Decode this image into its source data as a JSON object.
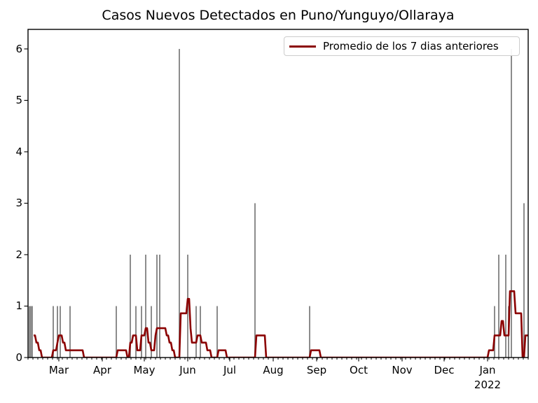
{
  "figure": {
    "background": "#ffffff"
  },
  "chart_data": {
    "type": "bar",
    "title": "Casos Nuevos Detectados en Puno/Yunguyo/Ollaraya",
    "legend": {
      "label": "Promedio de los 7 dias anteriores",
      "position": "upper right"
    },
    "bar_color": "#7f7f7f",
    "line_color": "#8b0000",
    "frame_color": "#000000",
    "ylabel": "",
    "xlabel": "",
    "ylim": [
      0,
      6.38
    ],
    "yticks": [
      "0",
      "1",
      "2",
      "3",
      "4",
      "5",
      "6"
    ],
    "grid": "off",
    "x_axis": {
      "start_date": "2021-02-07",
      "end_date": "2022-01-30",
      "minor_tick_interval_days": 3.5,
      "month_ticks": [
        {
          "label": "Mar",
          "date": "2021-03-01"
        },
        {
          "label": "Apr",
          "date": "2021-04-01"
        },
        {
          "label": "May",
          "date": "2021-05-01"
        },
        {
          "label": "Jun",
          "date": "2021-06-01"
        },
        {
          "label": "Jul",
          "date": "2021-07-01"
        },
        {
          "label": "Aug",
          "date": "2021-08-01"
        },
        {
          "label": "Sep",
          "date": "2021-09-01"
        },
        {
          "label": "Oct",
          "date": "2021-10-01"
        },
        {
          "label": "Nov",
          "date": "2021-11-01"
        },
        {
          "label": "Dec",
          "date": "2021-12-01"
        },
        {
          "label": "Jan",
          "date": "2022-01-01",
          "year_label": "2022"
        }
      ]
    },
    "bars": [
      {
        "date": "2021-02-08",
        "count": 1
      },
      {
        "date": "2021-02-09",
        "count": 1
      },
      {
        "date": "2021-02-10",
        "count": 1
      },
      {
        "date": "2021-02-25",
        "count": 1
      },
      {
        "date": "2021-02-28",
        "count": 1
      },
      {
        "date": "2021-03-02",
        "count": 1
      },
      {
        "date": "2021-03-09",
        "count": 1
      },
      {
        "date": "2021-04-11",
        "count": 1
      },
      {
        "date": "2021-04-21",
        "count": 2
      },
      {
        "date": "2021-04-25",
        "count": 1
      },
      {
        "date": "2021-04-29",
        "count": 1
      },
      {
        "date": "2021-05-02",
        "count": 2
      },
      {
        "date": "2021-05-06",
        "count": 1
      },
      {
        "date": "2021-05-10",
        "count": 2
      },
      {
        "date": "2021-05-12",
        "count": 2
      },
      {
        "date": "2021-05-26",
        "count": 6
      },
      {
        "date": "2021-06-01",
        "count": 2
      },
      {
        "date": "2021-06-07",
        "count": 1
      },
      {
        "date": "2021-06-10",
        "count": 1
      },
      {
        "date": "2021-06-22",
        "count": 1
      },
      {
        "date": "2021-07-19",
        "count": 3
      },
      {
        "date": "2021-08-27",
        "count": 1
      },
      {
        "date": "2022-01-06",
        "count": 1
      },
      {
        "date": "2022-01-09",
        "count": 2
      },
      {
        "date": "2022-01-14",
        "count": 2
      },
      {
        "date": "2022-01-16",
        "count": 1
      },
      {
        "date": "2022-01-18",
        "count": 6
      },
      {
        "date": "2022-01-27",
        "count": 3
      }
    ],
    "avg_line": [
      {
        "date": "2021-02-11",
        "value": 0.43
      },
      {
        "date": "2021-02-13",
        "value": 0.29
      },
      {
        "date": "2021-02-15",
        "value": 0.14
      },
      {
        "date": "2021-02-17",
        "value": 0
      },
      {
        "date": "2021-02-25",
        "value": 0.14
      },
      {
        "date": "2021-02-28",
        "value": 0.29
      },
      {
        "date": "2021-03-01",
        "value": 0.43
      },
      {
        "date": "2021-03-04",
        "value": 0.29
      },
      {
        "date": "2021-03-06",
        "value": 0.14
      },
      {
        "date": "2021-03-19",
        "value": 0
      },
      {
        "date": "2021-04-12",
        "value": 0.14
      },
      {
        "date": "2021-04-19",
        "value": 0
      },
      {
        "date": "2021-04-21",
        "value": 0.29
      },
      {
        "date": "2021-04-23",
        "value": 0.43
      },
      {
        "date": "2021-04-26",
        "value": 0.14
      },
      {
        "date": "2021-04-29",
        "value": 0.43
      },
      {
        "date": "2021-05-02",
        "value": 0.57
      },
      {
        "date": "2021-05-04",
        "value": 0.29
      },
      {
        "date": "2021-05-06",
        "value": 0.14
      },
      {
        "date": "2021-05-09",
        "value": 0.43
      },
      {
        "date": "2021-05-10",
        "value": 0.57
      },
      {
        "date": "2021-05-17",
        "value": 0.43
      },
      {
        "date": "2021-05-19",
        "value": 0.29
      },
      {
        "date": "2021-05-21",
        "value": 0.14
      },
      {
        "date": "2021-05-23",
        "value": 0
      },
      {
        "date": "2021-05-27",
        "value": 0.86
      },
      {
        "date": "2021-06-01",
        "value": 1.14
      },
      {
        "date": "2021-06-03",
        "value": 0.57
      },
      {
        "date": "2021-06-04",
        "value": 0.29
      },
      {
        "date": "2021-06-08",
        "value": 0.43
      },
      {
        "date": "2021-06-11",
        "value": 0.29
      },
      {
        "date": "2021-06-15",
        "value": 0.14
      },
      {
        "date": "2021-06-18",
        "value": 0
      },
      {
        "date": "2021-06-23",
        "value": 0.14
      },
      {
        "date": "2021-06-29",
        "value": 0
      },
      {
        "date": "2021-07-20",
        "value": 0.43
      },
      {
        "date": "2021-07-27",
        "value": 0
      },
      {
        "date": "2021-08-28",
        "value": 0.14
      },
      {
        "date": "2021-09-04",
        "value": 0
      },
      {
        "date": "2022-01-02",
        "value": 0.14
      },
      {
        "date": "2022-01-06",
        "value": 0.43
      },
      {
        "date": "2022-01-11",
        "value": 0.71
      },
      {
        "date": "2022-01-13",
        "value": 0.43
      },
      {
        "date": "2022-01-17",
        "value": 1.29
      },
      {
        "date": "2022-01-21",
        "value": 0.86
      },
      {
        "date": "2022-01-26",
        "value": 0
      },
      {
        "date": "2022-01-28",
        "value": 0.43
      },
      {
        "date": "2022-01-30",
        "value": 0.43
      }
    ]
  }
}
